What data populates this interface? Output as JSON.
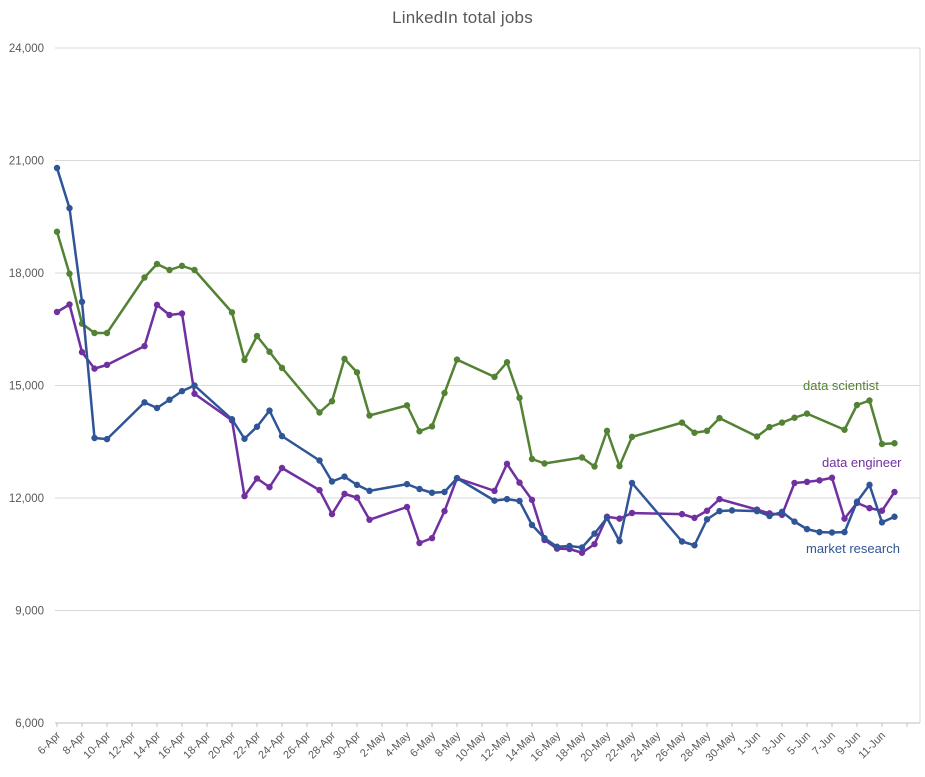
{
  "title": "LinkedIn total jobs",
  "colors": {
    "grid": "#d9d9d9",
    "axis_line": "#bfbfbf",
    "text": "#595959",
    "background": "#ffffff"
  },
  "chart_data": {
    "type": "line",
    "title": "LinkedIn total jobs",
    "xlabel": "",
    "ylabel": "",
    "ylim": [
      6000,
      24000
    ],
    "y_tick_labels": [
      "24,000",
      "21,000",
      "18,000",
      "15,000",
      "12,000",
      "9,000",
      "6,000"
    ],
    "x_tick_labels": [
      "6-Apr",
      "8-Apr",
      "10-Apr",
      "12-Apr",
      "14-Apr",
      "16-Apr",
      "18-Apr",
      "20-Apr",
      "22-Apr",
      "24-Apr",
      "26-Apr",
      "28-Apr",
      "30-Apr",
      "2-May",
      "4-May",
      "6-May",
      "8-May",
      "10-May",
      "12-May",
      "14-May",
      "16-May",
      "18-May",
      "20-May",
      "22-May",
      "24-May",
      "26-May",
      "28-May",
      "30-May",
      "1-Jun",
      "3-Jun",
      "5-Jun",
      "7-Jun",
      "9-Jun",
      "11-Jun"
    ],
    "grid": "horizontal",
    "legend_position": "inline-right-of-lines",
    "series": [
      {
        "name": "data scientist",
        "color": "#548235",
        "points": [
          [
            "6-Apr",
            19100
          ],
          [
            "7-Apr",
            17980
          ],
          [
            "8-Apr",
            16650
          ],
          [
            "9-Apr",
            16400
          ],
          [
            "10-Apr",
            16400
          ],
          [
            "13-Apr",
            17880
          ],
          [
            "14-Apr",
            18240
          ],
          [
            "15-Apr",
            18080
          ],
          [
            "16-Apr",
            18190
          ],
          [
            "17-Apr",
            18080
          ],
          [
            "20-Apr",
            16950
          ],
          [
            "21-Apr",
            15680
          ],
          [
            "22-Apr",
            16320
          ],
          [
            "23-Apr",
            15900
          ],
          [
            "24-Apr",
            15470
          ],
          [
            "27-Apr",
            14280
          ],
          [
            "28-Apr",
            14580
          ],
          [
            "29-Apr",
            15710
          ],
          [
            "30-Apr",
            15350
          ],
          [
            "1-May",
            14200
          ],
          [
            "4-May",
            14470
          ],
          [
            "5-May",
            13780
          ],
          [
            "6-May",
            13910
          ],
          [
            "7-May",
            14800
          ],
          [
            "8-May",
            15690
          ],
          [
            "11-May",
            15230
          ],
          [
            "12-May",
            15620
          ],
          [
            "13-May",
            14670
          ],
          [
            "14-May",
            13040
          ],
          [
            "15-May",
            12920
          ],
          [
            "18-May",
            13080
          ],
          [
            "19-May",
            12840
          ],
          [
            "20-May",
            13790
          ],
          [
            "21-May",
            12850
          ],
          [
            "22-May",
            13630
          ],
          [
            "26-May",
            14010
          ],
          [
            "27-May",
            13740
          ],
          [
            "28-May",
            13790
          ],
          [
            "29-May",
            14130
          ],
          [
            "1-Jun",
            13640
          ],
          [
            "2-Jun",
            13890
          ],
          [
            "3-Jun",
            14010
          ],
          [
            "4-Jun",
            14140
          ],
          [
            "5-Jun",
            14250
          ],
          [
            "8-Jun",
            13820
          ],
          [
            "9-Jun",
            14480
          ],
          [
            "10-Jun",
            14600
          ],
          [
            "11-Jun",
            13440
          ],
          [
            "12-Jun",
            13460
          ]
        ]
      },
      {
        "name": "data engineer",
        "color": "#7030a0",
        "points": [
          [
            "6-Apr",
            16960
          ],
          [
            "7-Apr",
            17160
          ],
          [
            "8-Apr",
            15890
          ],
          [
            "9-Apr",
            15450
          ],
          [
            "10-Apr",
            15550
          ],
          [
            "13-Apr",
            16050
          ],
          [
            "14-Apr",
            17150
          ],
          [
            "15-Apr",
            16880
          ],
          [
            "16-Apr",
            16920
          ],
          [
            "17-Apr",
            14780
          ],
          [
            "20-Apr",
            14070
          ],
          [
            "21-Apr",
            12050
          ],
          [
            "22-Apr",
            12520
          ],
          [
            "23-Apr",
            12290
          ],
          [
            "24-Apr",
            12800
          ],
          [
            "27-Apr",
            12210
          ],
          [
            "28-Apr",
            11570
          ],
          [
            "29-Apr",
            12110
          ],
          [
            "30-Apr",
            12010
          ],
          [
            "1-May",
            11420
          ],
          [
            "4-May",
            11760
          ],
          [
            "5-May",
            10800
          ],
          [
            "6-May",
            10930
          ],
          [
            "7-May",
            11650
          ],
          [
            "8-May",
            12530
          ],
          [
            "11-May",
            12190
          ],
          [
            "12-May",
            12910
          ],
          [
            "13-May",
            12410
          ],
          [
            "14-May",
            11950
          ],
          [
            "15-May",
            10880
          ],
          [
            "16-May",
            10650
          ],
          [
            "17-May",
            10640
          ],
          [
            "18-May",
            10540
          ],
          [
            "19-May",
            10770
          ],
          [
            "20-May",
            11500
          ],
          [
            "21-May",
            11450
          ],
          [
            "22-May",
            11600
          ],
          [
            "26-May",
            11570
          ],
          [
            "27-May",
            11470
          ],
          [
            "28-May",
            11660
          ],
          [
            "29-May",
            11970
          ],
          [
            "1-Jun",
            11690
          ],
          [
            "2-Jun",
            11590
          ],
          [
            "3-Jun",
            11550
          ],
          [
            "4-Jun",
            12400
          ],
          [
            "5-Jun",
            12430
          ],
          [
            "6-Jun",
            12470
          ],
          [
            "7-Jun",
            12540
          ],
          [
            "8-Jun",
            11450
          ],
          [
            "9-Jun",
            11870
          ],
          [
            "10-Jun",
            11730
          ],
          [
            "11-Jun",
            11660
          ],
          [
            "12-Jun",
            12160
          ]
        ]
      },
      {
        "name": "market research",
        "color": "#2f5597",
        "points": [
          [
            "6-Apr",
            20800
          ],
          [
            "7-Apr",
            19730
          ],
          [
            "8-Apr",
            17230
          ],
          [
            "9-Apr",
            13600
          ],
          [
            "10-Apr",
            13570
          ],
          [
            "13-Apr",
            14550
          ],
          [
            "14-Apr",
            14400
          ],
          [
            "15-Apr",
            14620
          ],
          [
            "16-Apr",
            14850
          ],
          [
            "17-Apr",
            15000
          ],
          [
            "20-Apr",
            14100
          ],
          [
            "21-Apr",
            13580
          ],
          [
            "22-Apr",
            13900
          ],
          [
            "23-Apr",
            14330
          ],
          [
            "24-Apr",
            13650
          ],
          [
            "27-Apr",
            13000
          ],
          [
            "28-Apr",
            12440
          ],
          [
            "29-Apr",
            12570
          ],
          [
            "30-Apr",
            12350
          ],
          [
            "1-May",
            12190
          ],
          [
            "4-May",
            12370
          ],
          [
            "5-May",
            12240
          ],
          [
            "6-May",
            12140
          ],
          [
            "7-May",
            12160
          ],
          [
            "8-May",
            12530
          ],
          [
            "11-May",
            11930
          ],
          [
            "12-May",
            11970
          ],
          [
            "13-May",
            11920
          ],
          [
            "14-May",
            11280
          ],
          [
            "15-May",
            10930
          ],
          [
            "16-May",
            10700
          ],
          [
            "17-May",
            10720
          ],
          [
            "18-May",
            10680
          ],
          [
            "19-May",
            11050
          ],
          [
            "20-May",
            11470
          ],
          [
            "21-May",
            10850
          ],
          [
            "22-May",
            12400
          ],
          [
            "26-May",
            10840
          ],
          [
            "27-May",
            10740
          ],
          [
            "28-May",
            11430
          ],
          [
            "29-May",
            11650
          ],
          [
            "30-May",
            11670
          ],
          [
            "1-Jun",
            11650
          ],
          [
            "2-Jun",
            11520
          ],
          [
            "3-Jun",
            11630
          ],
          [
            "4-Jun",
            11370
          ],
          [
            "5-Jun",
            11170
          ],
          [
            "6-Jun",
            11090
          ],
          [
            "7-Jun",
            11080
          ],
          [
            "8-Jun",
            11090
          ],
          [
            "9-Jun",
            11900
          ],
          [
            "10-Jun",
            12350
          ],
          [
            "11-Jun",
            11350
          ],
          [
            "12-Jun",
            11500
          ]
        ]
      }
    ]
  }
}
